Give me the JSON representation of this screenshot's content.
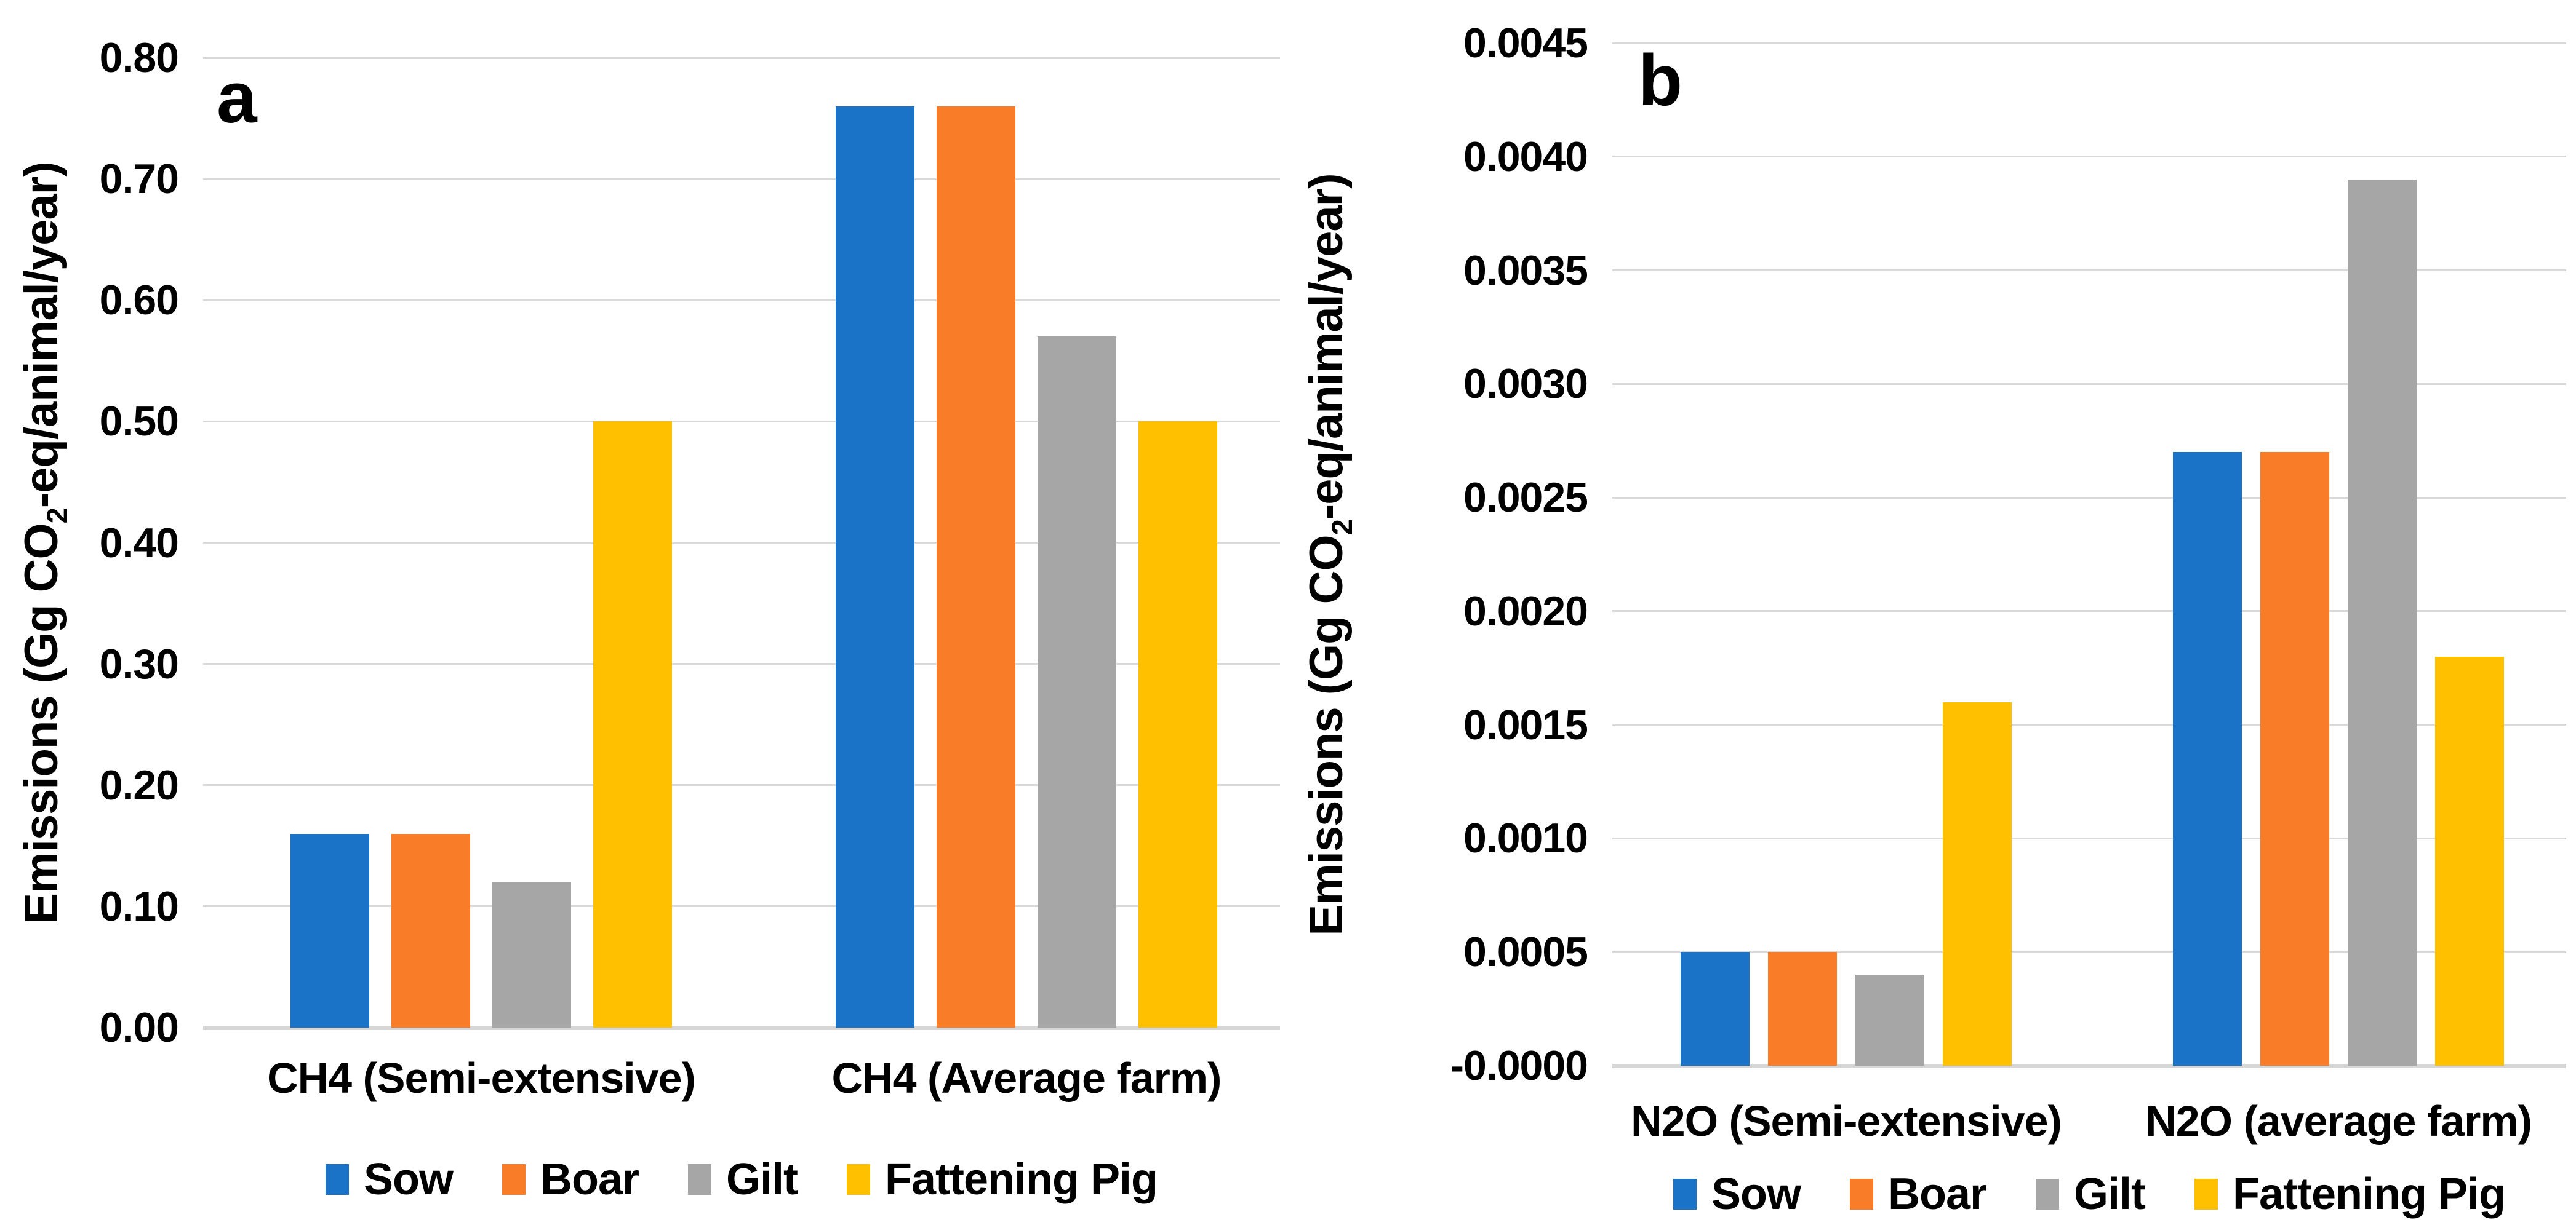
{
  "background_color": "#ffffff",
  "gridline_color": "#d9d9d9",
  "axisline_color": "#d6d6d6",
  "chart_data": [
    {
      "type": "bar",
      "panel_letter": "a",
      "ylabel_pre": "Emissions (Gg CO",
      "ylabel_sub": "2",
      "ylabel_post": "-eq/animal/year)",
      "ylim": [
        0,
        0.8
      ],
      "ytick_step": 0.1,
      "ytick_decimals": 2,
      "grid": true,
      "legend_position": "bottom",
      "categories": [
        "CH4 (Semi-extensive)",
        "CH4 (Average farm)"
      ],
      "series": [
        {
          "name": "Sow",
          "color": "#1b73c8",
          "values": [
            0.16,
            0.76
          ]
        },
        {
          "name": "Boar",
          "color": "#f97d28",
          "values": [
            0.16,
            0.76
          ]
        },
        {
          "name": "Gilt",
          "color": "#a6a6a6",
          "values": [
            0.12,
            0.57
          ]
        },
        {
          "name": "Fattening Pig",
          "color": "#ffc000",
          "values": [
            0.5,
            0.5
          ]
        }
      ]
    },
    {
      "type": "bar",
      "panel_letter": "b",
      "ylabel_pre": "Emissions (Gg CO",
      "ylabel_sub": "2",
      "ylabel_post": "-eq/animal/year)",
      "ylim": [
        0,
        0.0045
      ],
      "ytick_step": 0.0005,
      "ytick_decimals": 4,
      "grid": true,
      "legend_position": "bottom",
      "categories": [
        "N2O (Semi-extensive)",
        "N2O (average farm)"
      ],
      "series": [
        {
          "name": "Sow",
          "color": "#1b73c8",
          "values": [
            0.0005,
            0.0027
          ]
        },
        {
          "name": "Boar",
          "color": "#f97d28",
          "values": [
            0.0005,
            0.0027
          ]
        },
        {
          "name": "Gilt",
          "color": "#a6a6a6",
          "values": [
            0.0004,
            0.0039
          ]
        },
        {
          "name": "Fattening Pig",
          "color": "#ffc000",
          "values": [
            0.0016,
            0.0018
          ]
        }
      ]
    }
  ]
}
